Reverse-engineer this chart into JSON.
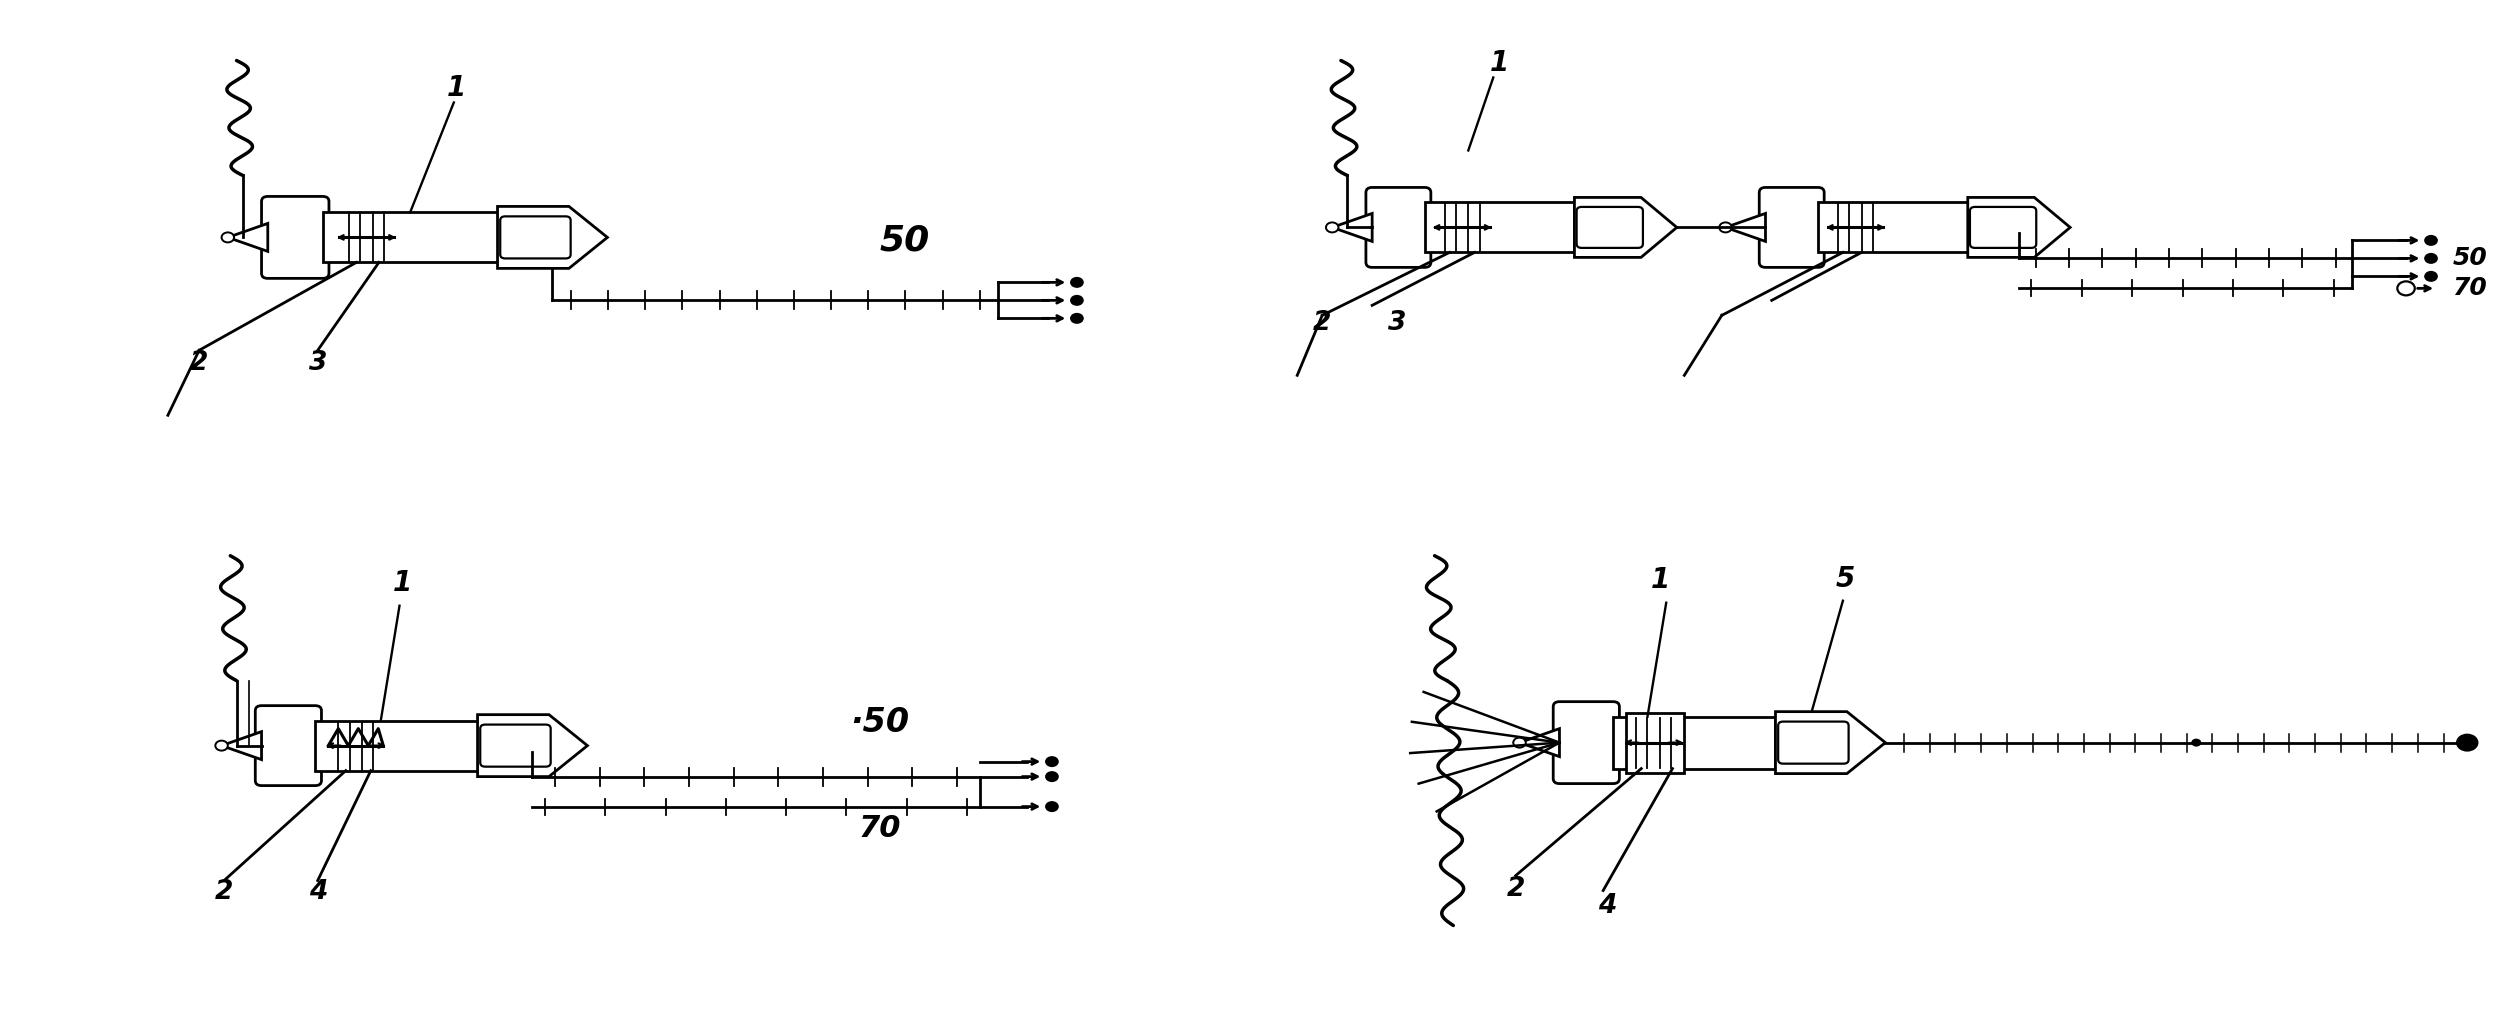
{
  "bg": "#ffffff",
  "fg": "#000000",
  "lw": 2.0,
  "fig_w": 25.14,
  "fig_h": 10.16,
  "dpi": 100
}
